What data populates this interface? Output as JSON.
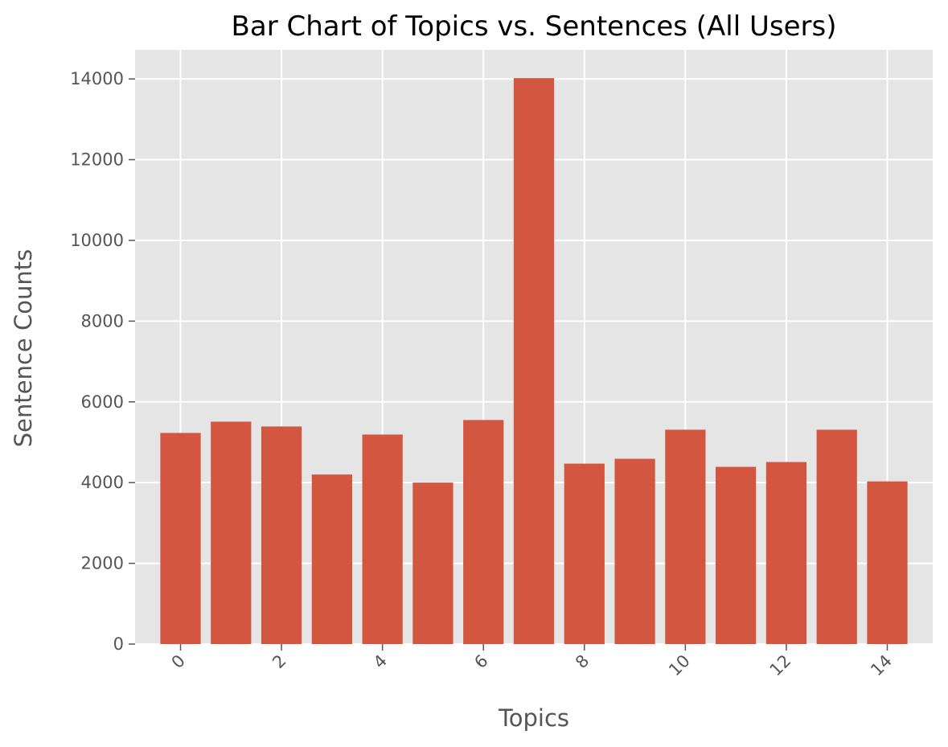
{
  "chart_data": {
    "type": "bar",
    "title": "Bar Chart of Topics vs. Sentences (All Users)",
    "xlabel": "Topics",
    "ylabel": "Sentence Counts",
    "categories": [
      0,
      1,
      2,
      3,
      4,
      5,
      6,
      7,
      8,
      9,
      10,
      11,
      12,
      13,
      14
    ],
    "values": [
      5230,
      5510,
      5390,
      4200,
      5190,
      4000,
      5550,
      14020,
      4470,
      4590,
      5310,
      4390,
      4510,
      5310,
      4030
    ],
    "xticks": [
      0,
      2,
      4,
      6,
      8,
      10,
      12,
      14
    ],
    "xtick_labels": [
      "0",
      "2",
      "4",
      "6",
      "8",
      "10",
      "12",
      "14"
    ],
    "yticks": [
      0,
      2000,
      4000,
      6000,
      8000,
      10000,
      12000,
      14000
    ],
    "ytick_labels": [
      "0",
      "2000",
      "4000",
      "6000",
      "8000",
      "10000",
      "12000",
      "14000"
    ],
    "xtick_rotation": "45 degrees",
    "xlim": [
      -0.9,
      14.9
    ],
    "ylim": [
      0,
      14720
    ],
    "grid": true,
    "legend": "none",
    "colors": {
      "bar": "#d35640",
      "plot_background": "#e5e5e5",
      "grid": "#ffffff",
      "tick_text": "#555555",
      "title_text": "#000000"
    }
  }
}
